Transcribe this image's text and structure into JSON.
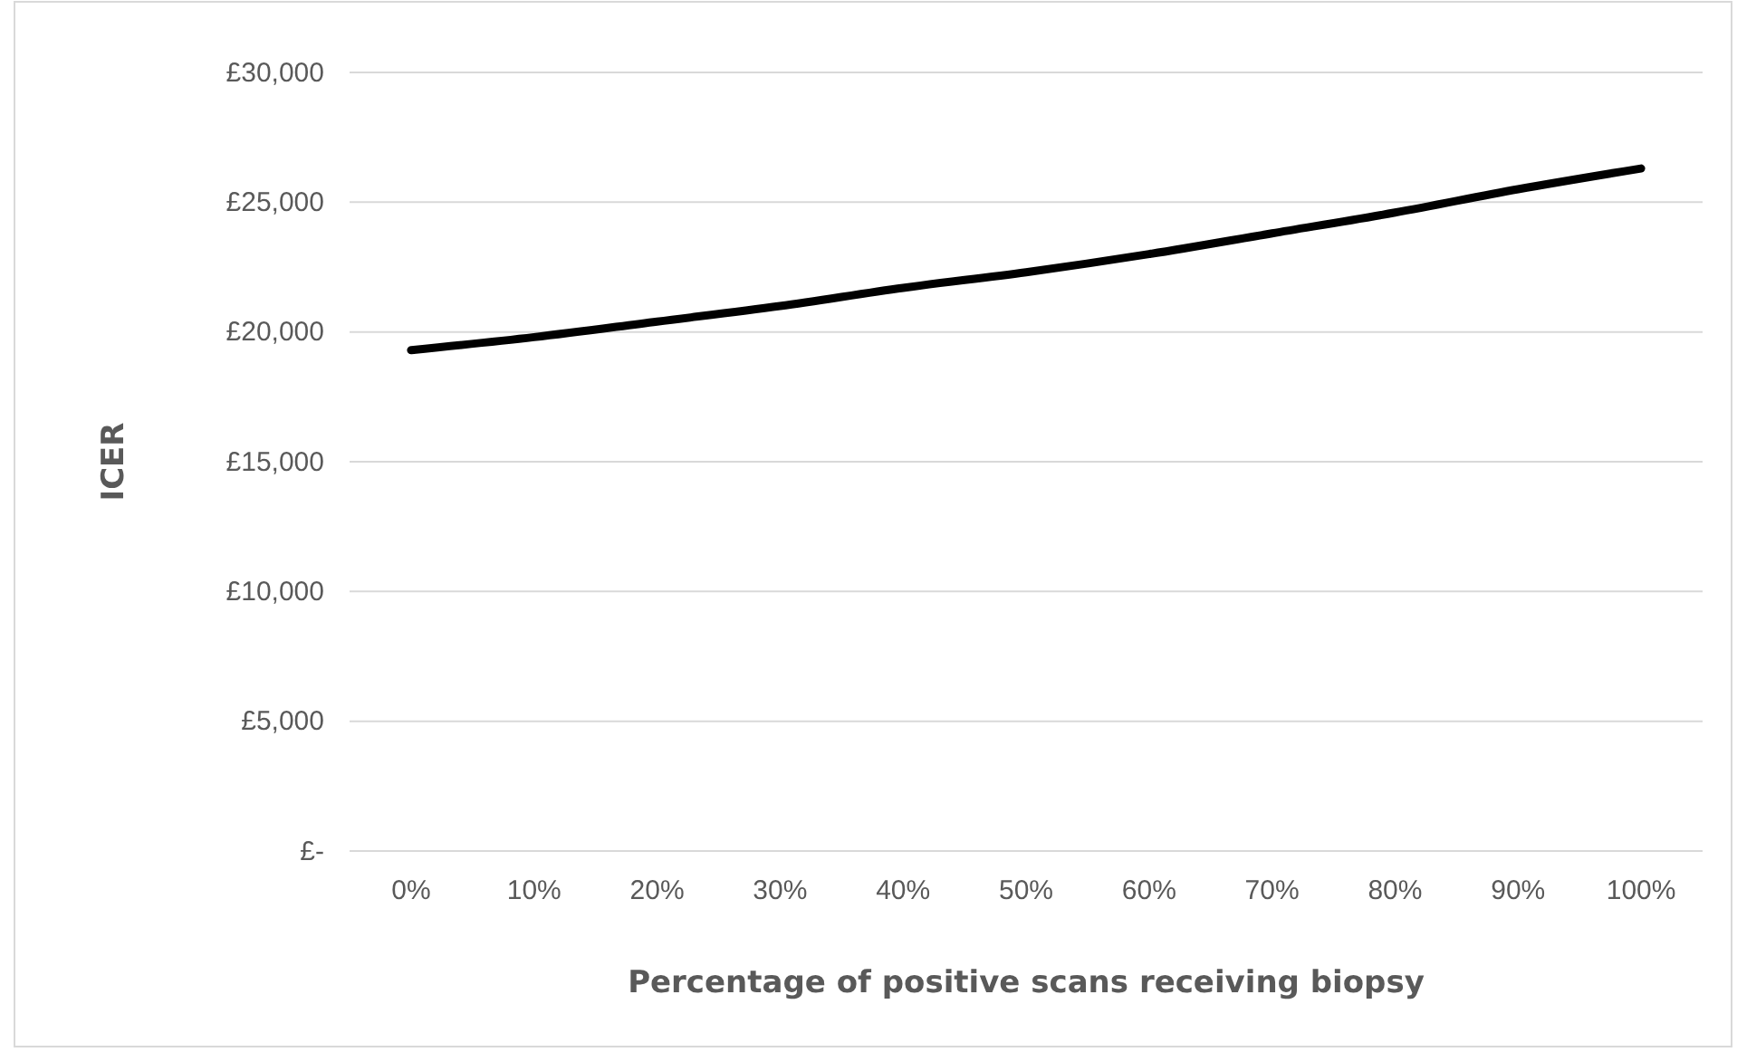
{
  "chart_data": {
    "type": "line",
    "xlabel": "Percentage of positive scans receiving biopsy",
    "ylabel": "ICER",
    "categories": [
      "0%",
      "10%",
      "20%",
      "30%",
      "40%",
      "50%",
      "60%",
      "70%",
      "80%",
      "90%",
      "100%"
    ],
    "series": [
      {
        "color": "#000000",
        "values": [
          19300,
          19800,
          20400,
          21000,
          21700,
          22300,
          23000,
          23800,
          24600,
          25500,
          26300
        ]
      }
    ],
    "ylim": [
      0,
      30000
    ],
    "yticks": [
      {
        "value": 0,
        "label": "£-"
      },
      {
        "value": 5000,
        "label": "£5,000"
      },
      {
        "value": 10000,
        "label": "£10,000"
      },
      {
        "value": 15000,
        "label": "£15,000"
      },
      {
        "value": 20000,
        "label": "£20,000"
      },
      {
        "value": 25000,
        "label": "£25,000"
      },
      {
        "value": 30000,
        "label": "£30,000"
      }
    ],
    "grid": "y",
    "marker": "none",
    "line_style": "solid"
  }
}
